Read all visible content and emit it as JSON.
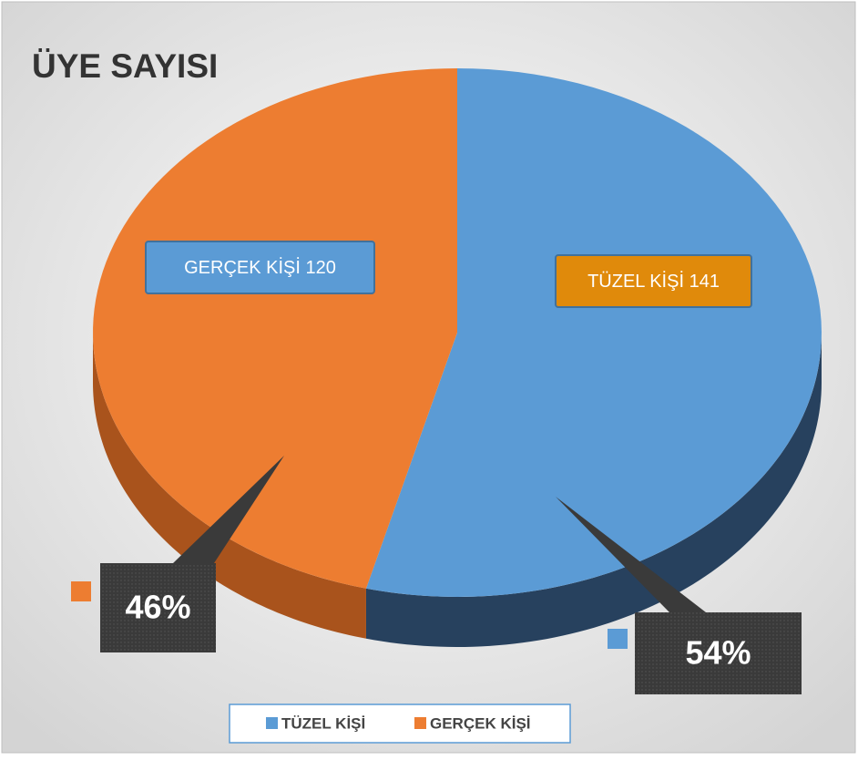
{
  "chart_data": {
    "type": "pie3d",
    "title": "ÜYE SAYISI",
    "categories": [
      "TÜZEL KİŞİ",
      "GERÇEK KİŞİ"
    ],
    "values": [
      141,
      120
    ],
    "value_labels": [
      "TÜZEL KİŞİ 141",
      "GERÇEK KİŞİ 120"
    ],
    "percent_labels": [
      "54%",
      "46%"
    ],
    "colors": [
      "#5B9BD5",
      "#ED7D31"
    ],
    "legend": "bottom"
  }
}
